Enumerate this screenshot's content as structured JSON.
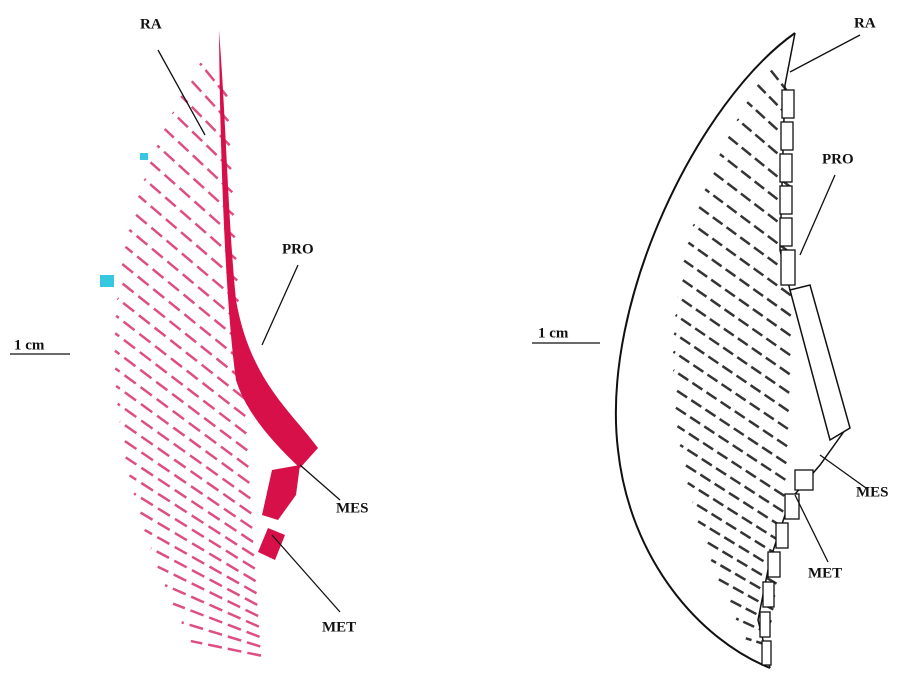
{
  "left_panel": {
    "labels": {
      "ra": "RA",
      "pro": "PRO",
      "mes": "MES",
      "met": "MET"
    },
    "scale": "1 cm"
  },
  "right_panel": {
    "labels": {
      "ra": "RA",
      "pro": "PRO",
      "mes": "MES",
      "met": "MET"
    },
    "scale": "1 cm"
  }
}
